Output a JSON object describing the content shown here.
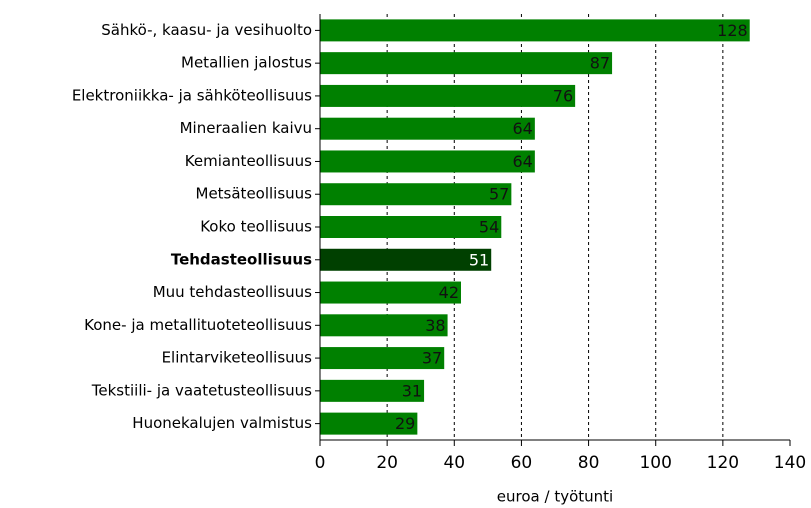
{
  "chart_data": {
    "type": "bar",
    "orientation": "horizontal",
    "categories": [
      "Sähkö-, kaasu- ja vesihuolto",
      "Metallien jalostus",
      "Elektroniikka- ja sähköteollisuus",
      "Mineraalien kaivu",
      "Kemianteollisuus",
      "Metsäteollisuus",
      "Koko teollisuus",
      "Tehdasteollisuus",
      "Muu tehdasteollisuus",
      "Kone- ja metallituoteteollisuus",
      "Elintarviketeollisuus",
      "Tekstiili- ja vaatetusteollisuus",
      "Huonekalujen valmistus"
    ],
    "values": [
      128,
      87,
      76,
      64,
      64,
      57,
      54,
      51,
      42,
      38,
      37,
      31,
      29
    ],
    "color": "#008000",
    "highlight": {
      "index": 7,
      "color": "#004000"
    },
    "xlim": [
      0,
      140
    ],
    "xticks": [
      0,
      20,
      40,
      60,
      80,
      100,
      120,
      140
    ],
    "xlabel": "euroa / työtunti",
    "grid": true
  }
}
